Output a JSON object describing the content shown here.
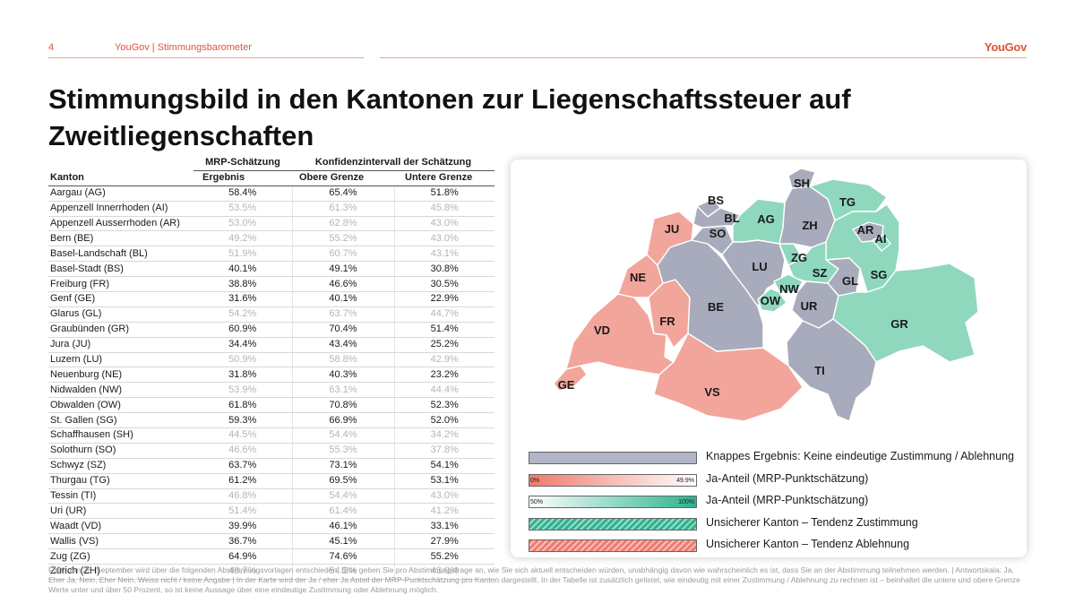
{
  "header": {
    "page_number": "4",
    "section": "YouGov | Stimmungsbarometer",
    "logo": "YouGov"
  },
  "title": "Stimmungsbild in den Kantonen zur Liegenschaftssteuer auf Zweitliegenschaften",
  "table": {
    "group_header_1": "MRP-Schätzung",
    "group_header_2": "Konfidenzintervall der Schätzung",
    "col_canton": "Kanton",
    "col_result": "Ergebnis",
    "col_upper": "Obere Grenze",
    "col_lower": "Untere Grenze",
    "rows": [
      {
        "canton": "Aargau (AG)",
        "result": "58.4%",
        "upper": "65.4%",
        "lower": "51.8%"
      },
      {
        "canton": "Appenzell Innerrhoden (AI)",
        "result": "53.5%",
        "upper": "61.3%",
        "lower": "45.8%"
      },
      {
        "canton": "Appenzell Ausserrhoden (AR)",
        "result": "53.0%",
        "upper": "62.8%",
        "lower": "43.0%"
      },
      {
        "canton": "Bern (BE)",
        "result": "49.2%",
        "upper": "55.2%",
        "lower": "43.0%"
      },
      {
        "canton": "Basel-Landschaft (BL)",
        "result": "51.9%",
        "upper": "60.7%",
        "lower": "43.1%"
      },
      {
        "canton": "Basel-Stadt (BS)",
        "result": "40.1%",
        "upper": "49.1%",
        "lower": "30.8%"
      },
      {
        "canton": "Freiburg (FR)",
        "result": "38.8%",
        "upper": "46.6%",
        "lower": "30.5%"
      },
      {
        "canton": "Genf (GE)",
        "result": "31.6%",
        "upper": "40.1%",
        "lower": "22.9%"
      },
      {
        "canton": "Glarus (GL)",
        "result": "54.2%",
        "upper": "63.7%",
        "lower": "44.7%"
      },
      {
        "canton": "Graubünden (GR)",
        "result": "60.9%",
        "upper": "70.4%",
        "lower": "51.4%"
      },
      {
        "canton": "Jura (JU)",
        "result": "34.4%",
        "upper": "43.4%",
        "lower": "25.2%"
      },
      {
        "canton": "Luzern (LU)",
        "result": "50.9%",
        "upper": "58.8%",
        "lower": "42.9%"
      },
      {
        "canton": "Neuenburg (NE)",
        "result": "31.8%",
        "upper": "40.3%",
        "lower": "23.2%"
      },
      {
        "canton": "Nidwalden (NW)",
        "result": "53.9%",
        "upper": "63.1%",
        "lower": "44.4%"
      },
      {
        "canton": "Obwalden (OW)",
        "result": "61.8%",
        "upper": "70.8%",
        "lower": "52.3%"
      },
      {
        "canton": "St. Gallen (SG)",
        "result": "59.3%",
        "upper": "66.9%",
        "lower": "52.0%"
      },
      {
        "canton": "Schaffhausen (SH)",
        "result": "44.5%",
        "upper": "54.4%",
        "lower": "34.2%"
      },
      {
        "canton": "Solothurn (SO)",
        "result": "46.6%",
        "upper": "55.3%",
        "lower": "37.8%"
      },
      {
        "canton": "Schwyz (SZ)",
        "result": "63.7%",
        "upper": "73.1%",
        "lower": "54.1%"
      },
      {
        "canton": "Thurgau (TG)",
        "result": "61.2%",
        "upper": "69.5%",
        "lower": "53.1%"
      },
      {
        "canton": "Tessin (TI)",
        "result": "46.8%",
        "upper": "54.4%",
        "lower": "43.0%"
      },
      {
        "canton": "Uri (UR)",
        "result": "51.4%",
        "upper": "61.4%",
        "lower": "41.2%"
      },
      {
        "canton": "Waadt (VD)",
        "result": "39.9%",
        "upper": "46.1%",
        "lower": "33.1%"
      },
      {
        "canton": "Wallis (VS)",
        "result": "36.7%",
        "upper": "45.1%",
        "lower": "27.9%"
      },
      {
        "canton": "Zug (ZG)",
        "result": "64.9%",
        "upper": "74.6%",
        "lower": "55.2%"
      },
      {
        "canton": "Zürich (ZH)",
        "result": "48.7%",
        "upper": "54.2%",
        "lower": "43.0%"
      }
    ]
  },
  "map": {
    "colors": {
      "no_clear_result": "#a7abbb",
      "yes_low": "#f2a59b",
      "yes_high": "#8fd8bd",
      "outline": "#ffffff"
    },
    "labels": [
      "SH",
      "BS",
      "TG",
      "BL",
      "AG",
      "ZH",
      "JU",
      "SO",
      "AR",
      "AI",
      "LU",
      "ZG",
      "NE",
      "SZ",
      "SG",
      "GL",
      "NW",
      "OW",
      "UR",
      "BE",
      "FR",
      "GR",
      "VD",
      "TI",
      "GE",
      "VS"
    ]
  },
  "legend": {
    "items": [
      {
        "text": "Knappes Ergebnis: Keine eindeutige Zustimmung / Ablehnung"
      },
      {
        "text": "Ja-Anteil (MRP-Punktschätzung)",
        "min_label": "0%",
        "max_label": "49.9%"
      },
      {
        "text": "Ja-Anteil (MRP-Punktschätzung)",
        "min_label": "50%",
        "max_label": "100%"
      },
      {
        "text": "Unsicherer Kanton – Tendenz Zustimmung"
      },
      {
        "text": "Unsicherer Kanton – Tendenz Ablehnung"
      }
    ]
  },
  "footnote": "F110: Am 28. September wird über die folgenden Abstimmungsvorlagen entschieden. Bitte geben Sie pro Abstimmungsfrage an, wie Sie sich aktuell entscheiden würden, unabhängig davon wie wahrscheinlich es ist, dass Sie an der Abstimmung teilnehmen werden. | Antwortskala: Ja, Eher Ja, Nein, Eher Nein, Weiss nicht / keine Angabe | In der Karte wird der Ja / eher Ja Anteil der MRP-Punktschätzung pro Kanton dargestellt. In der Tabelle ist zusätzlich gelistet, wie eindeutig mit einer Zustimmung / Ablehnung zu rechnen ist – beinhaltet die untere und obere Grenze Werte unter und über 50 Prozent, so ist keine Aussage über eine eindeutige Zustimmung oder Ablehnung möglich."
}
